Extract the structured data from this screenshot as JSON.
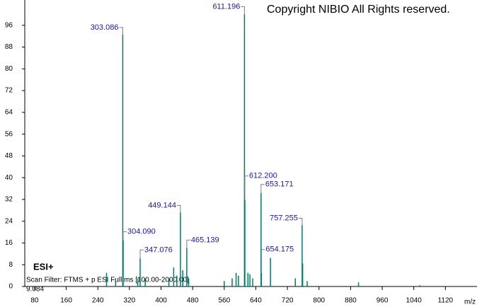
{
  "chart_data": {
    "type": "spectrum",
    "annotations": {
      "copyright": "Copyright NIBIO All Rights reserved.",
      "mode": "ESI+",
      "filter": "Scan Filter: FTMS + p ESI Full ms [100.00-2000.00]",
      "time": "9.084"
    },
    "xlabel": "m/z",
    "color": "#007a6e",
    "label_color": "#1a1a9c",
    "xlim": [
      55,
      1200
    ],
    "xticks": [
      80,
      160,
      240,
      320,
      400,
      480,
      560,
      640,
      720,
      800,
      880,
      960,
      1040,
      1120
    ],
    "ylim": [
      0,
      104
    ],
    "yticks": [
      0,
      8,
      16,
      24,
      32,
      40,
      48,
      56,
      64,
      72,
      80,
      88,
      96
    ],
    "x": [
      262,
      285,
      303.086,
      304.09,
      341,
      347.076,
      360,
      420,
      432,
      440,
      449.144,
      455,
      465.139,
      470,
      560,
      580,
      590,
      596,
      611.196,
      612.2,
      620,
      625,
      632,
      653.171,
      654.175,
      677,
      740,
      757.255,
      758.5,
      770,
      900,
      1055
    ],
    "values": [
      5,
      3,
      92.6,
      17,
      3,
      10.3,
      3,
      3,
      7,
      4,
      27.2,
      6,
      14.2,
      3,
      2,
      3,
      5,
      4,
      100,
      31.8,
      5,
      4.5,
      3,
      34.4,
      5,
      10.5,
      3,
      22.5,
      8.5,
      2,
      1.5,
      0.5
    ],
    "x_labels": [
      null,
      null,
      "303.086",
      "304.090",
      null,
      "347.076",
      null,
      null,
      null,
      null,
      "449.144",
      null,
      "465.139",
      null,
      null,
      null,
      null,
      null,
      "611.196",
      "612.200",
      null,
      null,
      null,
      "653.171",
      "654.175",
      null,
      null,
      "757.255",
      null,
      null,
      null,
      null
    ]
  }
}
